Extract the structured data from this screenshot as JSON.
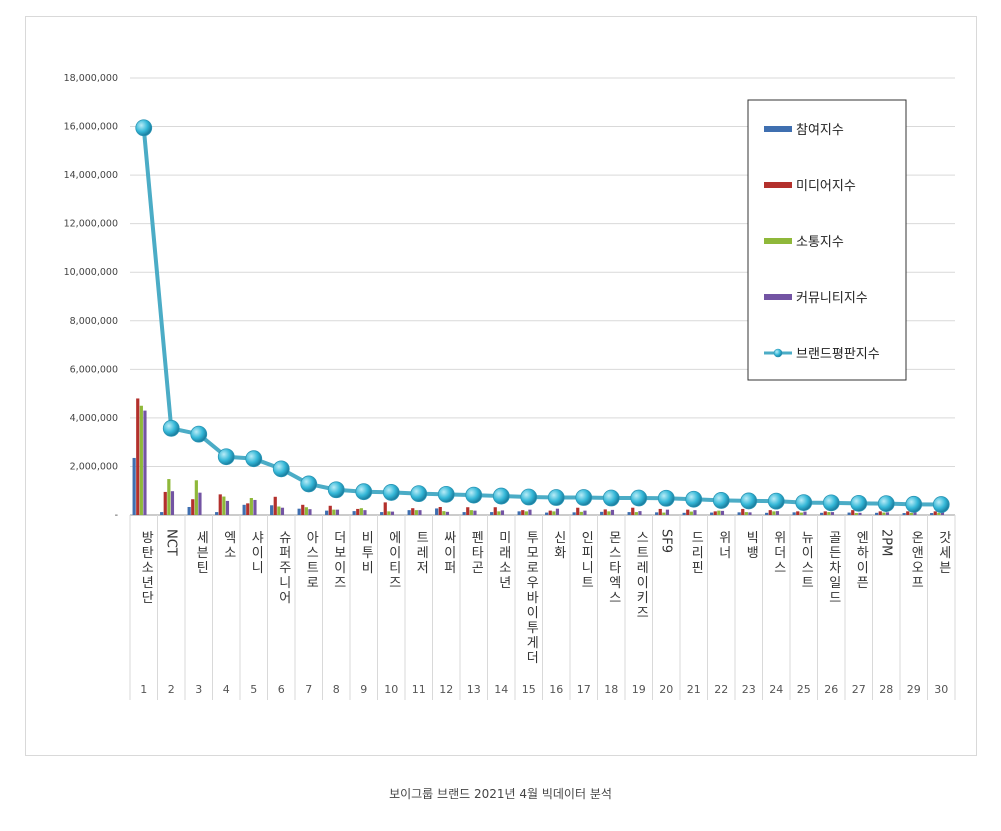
{
  "caption": "보이그룹 브랜드 2021년 4월 빅데이터 분석",
  "colors": {
    "participation": "#3f6fb0",
    "media": "#b3302c",
    "communication": "#8fb83a",
    "community": "#7354a3",
    "brand": "#4bacc6"
  },
  "chart_data": {
    "type": "bar+line",
    "ylim": [
      0,
      18000000
    ],
    "yticks": [
      "-",
      "2,000,000",
      "4,000,000",
      "6,000,000",
      "8,000,000",
      "10,000,000",
      "12,000,000",
      "14,000,000",
      "16,000,000",
      "18,000,000"
    ],
    "ranks": [
      "1",
      "2",
      "3",
      "4",
      "5",
      "6",
      "7",
      "8",
      "9",
      "10",
      "11",
      "12",
      "13",
      "14",
      "15",
      "16",
      "17",
      "18",
      "19",
      "20",
      "21",
      "22",
      "23",
      "24",
      "25",
      "26",
      "27",
      "28",
      "29",
      "30"
    ],
    "categories": [
      "방탄소년단",
      "NCT",
      "세븐틴",
      "엑소",
      "샤이니",
      "슈퍼주니어",
      "아스트로",
      "더보이즈",
      "비투비",
      "에이티즈",
      "트레저",
      "싸이퍼",
      "펜타곤",
      "미래소년",
      "투모로우바이투게더",
      "신화",
      "인피니트",
      "몬스타엑스",
      "스트레이키즈",
      "SF9",
      "드리핀",
      "위너",
      "빅뱅",
      "위더스",
      "뉴이스트",
      "골든차일드",
      "엔하이픈",
      "2PM",
      "온앤오프",
      "갓세븐"
    ],
    "rotated": [
      "NCT",
      "SF9",
      "2PM"
    ],
    "legend_position": "top-right",
    "series": [
      {
        "name": "참여지수",
        "key": "participation",
        "values": [
          2350000,
          120000,
          330000,
          120000,
          420000,
          400000,
          260000,
          180000,
          160000,
          120000,
          200000,
          270000,
          120000,
          120000,
          150000,
          100000,
          110000,
          130000,
          120000,
          110000,
          90000,
          100000,
          110000,
          90000,
          110000,
          90000,
          100000,
          90000,
          80000,
          80000
        ]
      },
      {
        "name": "미디어지수",
        "key": "media",
        "values": [
          4800000,
          950000,
          650000,
          850000,
          480000,
          750000,
          420000,
          380000,
          250000,
          520000,
          280000,
          330000,
          320000,
          320000,
          200000,
          180000,
          300000,
          230000,
          300000,
          250000,
          220000,
          150000,
          250000,
          200000,
          150000,
          150000,
          200000,
          150000,
          150000,
          150000
        ]
      },
      {
        "name": "소통지수",
        "key": "communication",
        "values": [
          4500000,
          1480000,
          1430000,
          760000,
          700000,
          350000,
          320000,
          220000,
          280000,
          150000,
          200000,
          160000,
          200000,
          150000,
          150000,
          150000,
          130000,
          150000,
          120000,
          100000,
          140000,
          180000,
          120000,
          150000,
          100000,
          120000,
          80000,
          100000,
          90000,
          90000
        ]
      },
      {
        "name": "커뮤니티지수",
        "key": "community",
        "values": [
          4300000,
          980000,
          920000,
          580000,
          620000,
          300000,
          240000,
          220000,
          200000,
          140000,
          200000,
          130000,
          180000,
          190000,
          220000,
          260000,
          180000,
          210000,
          160000,
          220000,
          200000,
          170000,
          110000,
          160000,
          140000,
          120000,
          90000,
          110000,
          120000,
          110000
        ]
      },
      {
        "name": "브랜드평판지수",
        "key": "brand",
        "type": "line",
        "values": [
          15950000,
          3570000,
          3330000,
          2400000,
          2320000,
          1900000,
          1280000,
          1040000,
          960000,
          930000,
          880000,
          850000,
          820000,
          780000,
          740000,
          720000,
          720000,
          700000,
          700000,
          690000,
          650000,
          600000,
          580000,
          570000,
          510000,
          500000,
          480000,
          470000,
          440000,
          430000
        ]
      }
    ]
  }
}
